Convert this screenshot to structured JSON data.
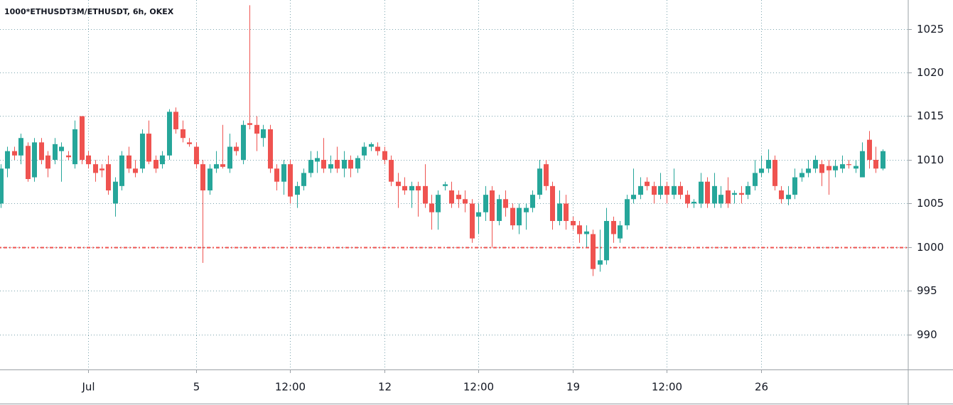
{
  "chart_data": {
    "type": "candlestick",
    "title": "1000*ETHUSDT3M/ETHUSDT, 6h, OKEX",
    "categories": [
      null,
      null,
      null,
      null,
      null,
      null,
      null,
      null,
      null,
      null,
      null,
      null,
      null,
      "Jul",
      null,
      null,
      null,
      null,
      null,
      null,
      null,
      null,
      null,
      null,
      null,
      null,
      null,
      null,
      null,
      "5",
      null,
      null,
      null,
      null,
      null,
      null,
      null,
      null,
      null,
      null,
      null,
      null,
      null,
      "12:00",
      null,
      null,
      null,
      null,
      null,
      null,
      null,
      null,
      null,
      null,
      null,
      null,
      null,
      "12",
      null,
      null,
      null,
      null,
      null,
      null,
      null,
      null,
      null,
      null,
      null,
      null,
      null,
      "12:00",
      null,
      null,
      null,
      null,
      null,
      null,
      null,
      null,
      null,
      null,
      null,
      null,
      null,
      "19",
      null,
      null,
      null,
      null,
      null,
      null,
      null,
      null,
      null,
      null,
      null,
      null,
      null,
      "12:00",
      null,
      null,
      null,
      null,
      null,
      null,
      null,
      null,
      null,
      null,
      null,
      null,
      null,
      "26",
      null,
      null,
      null,
      null,
      null,
      null,
      null,
      null,
      null,
      null,
      null,
      null,
      null,
      null,
      null,
      null,
      null,
      null
    ],
    "open": [
      1005,
      1009,
      1011,
      1010.5,
      1011.6,
      1008,
      1012,
      1010.5,
      1010,
      1011,
      1010.5,
      1009.5,
      1015,
      1010.5,
      1009.5,
      1009,
      1009.5,
      1005,
      1007,
      1010.5,
      1009,
      1009,
      1013,
      1010,
      1009.5,
      1010.5,
      1015.5,
      1013.5,
      1012,
      1011.5,
      1009.5,
      1006.5,
      1009,
      1009.5,
      1009,
      1011.5,
      1010,
      1014.2,
      1014,
      1012.5,
      1013.5,
      1009,
      1007.5,
      1009.5,
      1006,
      1007,
      1008.5,
      1009.8,
      1010,
      1009,
      1010,
      1009,
      1010,
      1009,
      1010.5,
      1011.5,
      1011.5,
      1011,
      1010,
      1007.5,
      1007,
      1006.5,
      1007,
      1007,
      1005,
      1004,
      1007,
      1006.5,
      1006,
      1005.5,
      1005,
      1003.5,
      1004,
      1006.5,
      1003,
      1005.5,
      1004.5,
      1002.5,
      1004,
      1004.5,
      1006,
      1009.5,
      1007,
      1003,
      1005,
      1003,
      1002.5,
      1001.5,
      1001.5,
      998,
      998.5,
      1003,
      1001,
      1002.5,
      1005.5,
      1006,
      1007.5,
      1007,
      1006,
      1007,
      1006,
      1007,
      1006,
      1005,
      1005,
      1007.5,
      1005,
      1005,
      1006.5,
      1006,
      1006.2,
      1006,
      1007,
      1008.5,
      1009,
      1010,
      1006.5,
      1005.5,
      1006,
      1008,
      1008.5,
      1009,
      1009.5,
      1009.3,
      1008.8,
      1009,
      1009.5,
      1009,
      1008,
      1012.3,
      1010,
      1009
    ],
    "high": [
      1009.5,
      1011.5,
      1011.5,
      1013,
      1012,
      1012.5,
      1012.5,
      1011,
      1012.5,
      1012,
      1011,
      1014.5,
      1015,
      1011,
      1010,
      1009.5,
      1010.5,
      1008,
      1011,
      1011.5,
      1010,
      1013.5,
      1014.5,
      1010.5,
      1011,
      1015.8,
      1016,
      1014.5,
      1012.5,
      1012,
      1010,
      1009.5,
      1011,
      1014,
      1013,
      1012,
      1014.5,
      1027.7,
      1015,
      1014,
      1014,
      1009.5,
      1010,
      1010,
      1007.5,
      1009,
      1011,
      1011,
      1012.5,
      1010.5,
      1011.5,
      1011,
      1010.5,
      1010.5,
      1012,
      1012,
      1012,
      1011.5,
      1010.5,
      1008.5,
      1008,
      1007.5,
      1007.5,
      1009.5,
      1006,
      1006.5,
      1007.5,
      1007.5,
      1006.5,
      1006.5,
      1005.5,
      1005,
      1007,
      1007,
      1006,
      1006.5,
      1005,
      1005,
      1005,
      1006.5,
      1010,
      1010,
      1007.5,
      1006.5,
      1006,
      1003.5,
      1003,
      1002.5,
      1002,
      1002,
      1004.5,
      1003.5,
      1003,
      1006,
      1009,
      1008,
      1008,
      1007.5,
      1008.5,
      1007.5,
      1009,
      1007.5,
      1006.5,
      1005.5,
      1008.5,
      1008,
      1008.5,
      1007,
      1008,
      1006.5,
      1007,
      1007.5,
      1010,
      1010.5,
      1011.2,
      1010.5,
      1007,
      1007,
      1009,
      1009,
      1010,
      1010.5,
      1010,
      1010,
      1010,
      1010.5,
      1010,
      1010,
      1012,
      1013.3,
      1011.5,
      1011.2
    ],
    "low": [
      1004.5,
      1008,
      1010,
      1009.5,
      1007.5,
      1007.5,
      1009.5,
      1008,
      1009.5,
      1007.5,
      1010,
      1009,
      1009.5,
      1009,
      1007.5,
      1008,
      1006,
      1003.5,
      1006.5,
      1008.5,
      1008,
      1008.5,
      1009.5,
      1008.5,
      1009,
      1010,
      1013,
      1012,
      1011.5,
      1009,
      998.2,
      1006,
      1008.5,
      1009,
      1008.5,
      1010.5,
      1009.5,
      1013.5,
      1011,
      1011.5,
      1008.5,
      1006.5,
      1006,
      1005,
      1004.5,
      1006.5,
      1008,
      1008.5,
      1008.5,
      1008.5,
      1008.5,
      1008,
      1008,
      1008.5,
      1010,
      1011,
      1010.5,
      1009.5,
      1007,
      1004.5,
      1006,
      1004.5,
      1003.5,
      1004.5,
      1002,
      1002,
      1006.5,
      1004.5,
      1004.5,
      1004,
      1000.5,
      1001.5,
      1003,
      1000,
      1002.5,
      1003.5,
      1002,
      1001.5,
      1002,
      1004,
      1005.5,
      1006.5,
      1002,
      1002.5,
      1002,
      1002,
      1000.5,
      1000,
      996.7,
      997.2,
      998,
      1000.5,
      1000.5,
      1002,
      1005,
      1005.5,
      1006.5,
      1005,
      1005.5,
      1005,
      1005.5,
      1005.5,
      1004.5,
      1004.5,
      1004.5,
      1004.5,
      1004.5,
      1004.5,
      1004.5,
      1005,
      1005,
      1005.5,
      1006.5,
      1008,
      1008.5,
      1006.5,
      1005,
      1004.8,
      1005.5,
      1007.5,
      1008,
      1008.5,
      1007,
      1006,
      1008,
      1008.5,
      1009,
      1008.5,
      1008,
      1009,
      1008.5,
      1008.8
    ],
    "close": [
      1009,
      1011,
      1010.5,
      1012.5,
      1007.8,
      1012,
      1010,
      1009,
      1011.8,
      1011.5,
      1010.3,
      1013.5,
      1010,
      1009.5,
      1008.5,
      1008.8,
      1006.5,
      1007.5,
      1010.5,
      1009,
      1008.5,
      1013,
      1009.8,
      1009,
      1010.5,
      1015.5,
      1013.5,
      1012.5,
      1011.8,
      1009.5,
      1006.5,
      1009,
      1009.5,
      1009.2,
      1011.5,
      1011,
      1014,
      1014,
      1013,
      1013.5,
      1009,
      1007.5,
      1009.5,
      1005.8,
      1007,
      1008.5,
      1010,
      1010.2,
      1009,
      1009.5,
      1009,
      1010,
      1009,
      1010.2,
      1011.5,
      1011.8,
      1011,
      1010,
      1007.5,
      1007,
      1006.5,
      1007,
      1006.5,
      1005,
      1004,
      1006,
      1007.2,
      1005,
      1005.5,
      1005,
      1001,
      1004,
      1006,
      1003,
      1005.5,
      1004.5,
      1002.5,
      1004.5,
      1004.5,
      1006,
      1009,
      1007,
      1003,
      1005,
      1003,
      1002.5,
      1001.5,
      1001.8,
      997.5,
      998.5,
      1003,
      1001.5,
      1002.5,
      1005.5,
      1006,
      1007,
      1007,
      1006,
      1007,
      1006,
      1007,
      1006,
      1005,
      1005.2,
      1007.5,
      1005,
      1007,
      1006,
      1005,
      1006.2,
      1006,
      1007,
      1008.5,
      1009,
      1010,
      1007,
      1005.5,
      1006,
      1008,
      1008.5,
      1009,
      1010,
      1008.5,
      1008.8,
      1009.3,
      1009.5,
      1009.4,
      1009.3,
      1011,
      1010,
      1009,
      1011
    ],
    "up_color": "#26a69a",
    "down_color": "#ef5350",
    "ylim": [
      986,
      1028.3
    ],
    "yticks": [
      990,
      995,
      1000,
      1005,
      1010,
      1015,
      1020,
      1025
    ],
    "grid": true,
    "hline": {
      "value": 1000,
      "color": "#ef5350"
    }
  }
}
